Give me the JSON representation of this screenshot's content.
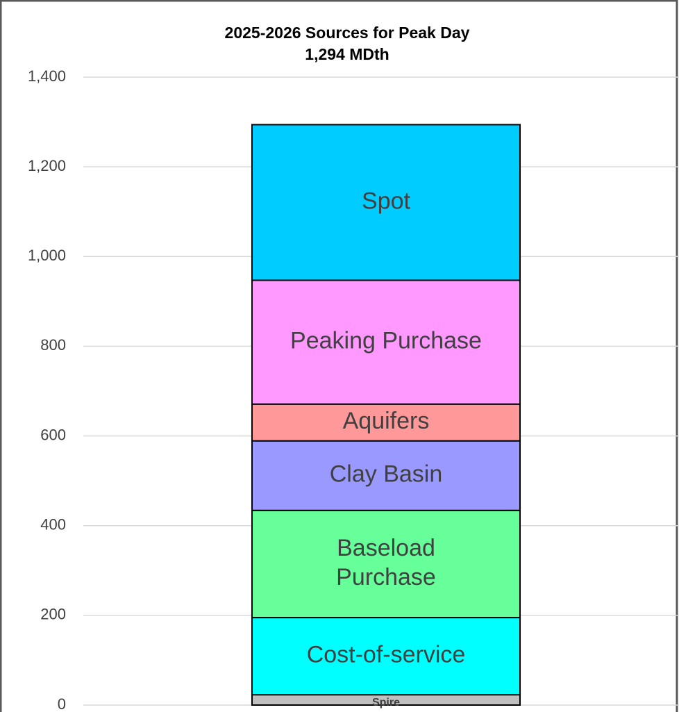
{
  "chart_data": {
    "type": "bar",
    "stacked": true,
    "title": "2025-2026 Sources for Peak Day",
    "subtitle": "1,294 MDth",
    "categories": [
      null
    ],
    "series": [
      {
        "name": "Spire",
        "color": "#c0c0c0",
        "values": [
          23
        ]
      },
      {
        "name": "Cost-of-service",
        "color": "#00ffff",
        "values": [
          172
        ]
      },
      {
        "name": "Baseload Purchase",
        "color": "#66ff99",
        "values": [
          239
        ]
      },
      {
        "name": "Clay Basin",
        "color": "#9999ff",
        "values": [
          155
        ]
      },
      {
        "name": "Aquifers",
        "color": "#ff9999",
        "values": [
          82
        ]
      },
      {
        "name": "Peaking Purchase",
        "color": "#ff99ff",
        "values": [
          276
        ]
      },
      {
        "name": "Spot",
        "color": "#00ccff",
        "values": [
          347
        ]
      }
    ],
    "ylim": [
      0,
      1400
    ],
    "yticks": [
      0,
      {
        "value": 200,
        "label": "200"
      },
      400,
      600,
      800,
      {
        "value": 1000,
        "label": "1,000"
      },
      {
        "value": 1200,
        "label": "1,200"
      },
      {
        "value": 1400,
        "label": "1,400"
      }
    ],
    "grid": true
  }
}
